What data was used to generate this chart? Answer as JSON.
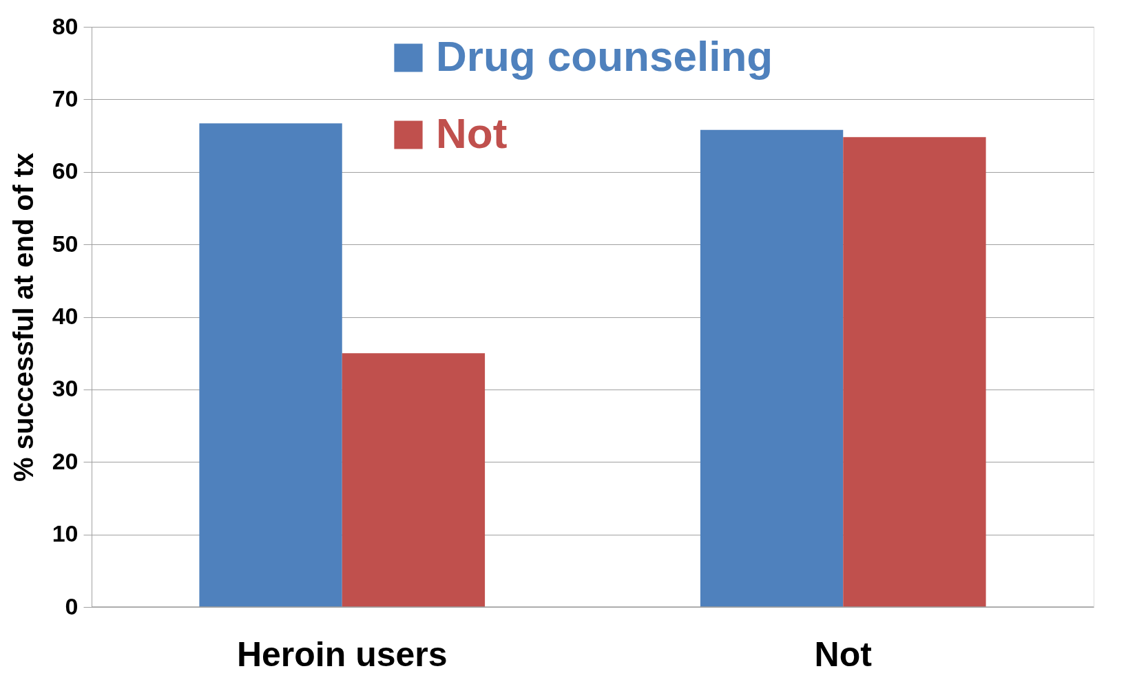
{
  "chart_data": {
    "type": "bar",
    "ylabel": "% successful at end of tx",
    "categories": [
      "Heroin users",
      "Not"
    ],
    "series": [
      {
        "name": "Drug counseling",
        "color": "#4f81bd",
        "values": [
          66.7,
          65.8
        ]
      },
      {
        "name": "Not",
        "color": "#c0504d",
        "values": [
          35,
          64.8
        ]
      }
    ],
    "ylim": [
      0,
      80
    ],
    "yticks": [
      0,
      10,
      20,
      30,
      40,
      50,
      60,
      70,
      80
    ],
    "grid": "y",
    "legend": "top"
  }
}
